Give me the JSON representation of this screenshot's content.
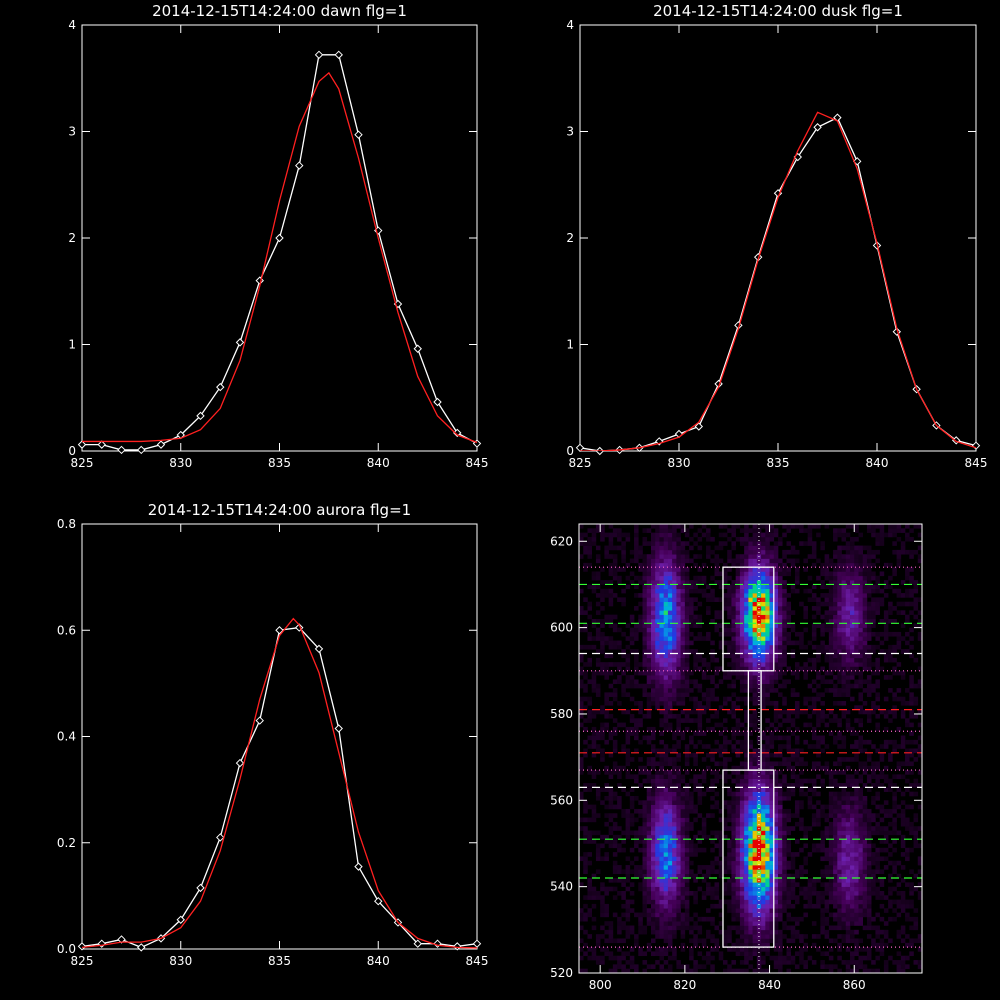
{
  "chart_data": [
    {
      "type": "line",
      "title": "2014-12-15T14:24:00 dawn flg=1",
      "xlim": [
        825,
        845
      ],
      "ylim": [
        0,
        4
      ],
      "xticks": [
        825,
        830,
        835,
        840,
        845
      ],
      "yticks": [
        0,
        1,
        2,
        3,
        4
      ],
      "grid": false,
      "series": [
        {
          "style": "observed",
          "color": "#ffffff",
          "markers": "diamond",
          "x": [
            825,
            826,
            827,
            828,
            829,
            830,
            831,
            832,
            833,
            834,
            835,
            836,
            837,
            838,
            839,
            840,
            841,
            842,
            843,
            844,
            845
          ],
          "y": [
            0.06,
            0.06,
            0.01,
            0.01,
            0.06,
            0.15,
            0.33,
            0.6,
            1.02,
            1.6,
            2.0,
            2.68,
            3.72,
            3.72,
            2.97,
            2.07,
            1.38,
            0.96,
            0.46,
            0.17,
            0.07
          ]
        },
        {
          "style": "fit",
          "color": "#ff2020",
          "markers": "none",
          "x": [
            825,
            826,
            827,
            828,
            829,
            830,
            831,
            832,
            833,
            834,
            835,
            836,
            837,
            837.5,
            838,
            839,
            840,
            841,
            842,
            843,
            844,
            845
          ],
          "y": [
            0.09,
            0.09,
            0.09,
            0.09,
            0.1,
            0.12,
            0.2,
            0.4,
            0.85,
            1.55,
            2.35,
            3.05,
            3.47,
            3.55,
            3.4,
            2.75,
            2.0,
            1.3,
            0.7,
            0.33,
            0.15,
            0.08
          ]
        }
      ]
    },
    {
      "type": "line",
      "title": "2014-12-15T14:24:00 dusk flg=1",
      "xlim": [
        825,
        845
      ],
      "ylim": [
        0,
        4
      ],
      "xticks": [
        825,
        830,
        835,
        840,
        845
      ],
      "yticks": [
        0,
        1,
        2,
        3,
        4
      ],
      "grid": false,
      "series": [
        {
          "style": "observed",
          "color": "#ffffff",
          "markers": "diamond",
          "x": [
            825,
            826,
            827,
            828,
            829,
            830,
            831,
            832,
            833,
            834,
            835,
            836,
            837,
            838,
            839,
            840,
            841,
            842,
            843,
            844,
            845
          ],
          "y": [
            0.03,
            0.0,
            0.01,
            0.03,
            0.09,
            0.16,
            0.23,
            0.63,
            1.18,
            1.82,
            2.42,
            2.76,
            3.04,
            3.13,
            2.72,
            1.93,
            1.12,
            0.58,
            0.24,
            0.1,
            0.05
          ]
        },
        {
          "style": "fit",
          "color": "#ff2020",
          "markers": "none",
          "x": [
            825,
            826,
            827,
            828,
            829,
            830,
            831,
            832,
            833,
            834,
            835,
            836,
            837,
            838,
            839,
            840,
            841,
            842,
            843,
            844,
            845
          ],
          "y": [
            0.0,
            0.0,
            0.01,
            0.03,
            0.07,
            0.13,
            0.27,
            0.6,
            1.15,
            1.8,
            2.38,
            2.82,
            3.18,
            3.1,
            2.65,
            1.95,
            1.15,
            0.58,
            0.24,
            0.09,
            0.03
          ]
        }
      ]
    },
    {
      "type": "line",
      "title": "2014-12-15T14:24:00 aurora flg=1",
      "xlim": [
        825,
        845
      ],
      "ylim": [
        0,
        0.8
      ],
      "xticks": [
        825,
        830,
        835,
        840,
        845
      ],
      "yticks": [
        0.0,
        0.2,
        0.4,
        0.6,
        0.8
      ],
      "grid": false,
      "series": [
        {
          "style": "observed",
          "color": "#ffffff",
          "markers": "diamond",
          "x": [
            825,
            826,
            827,
            828,
            829,
            830,
            831,
            832,
            833,
            834,
            835,
            836,
            837,
            838,
            839,
            840,
            841,
            842,
            843,
            844,
            845
          ],
          "y": [
            0.005,
            0.01,
            0.018,
            0.003,
            0.02,
            0.055,
            0.115,
            0.21,
            0.35,
            0.43,
            0.6,
            0.605,
            0.565,
            0.415,
            0.155,
            0.09,
            0.05,
            0.01,
            0.01,
            0.005,
            0.01
          ]
        },
        {
          "style": "fit",
          "color": "#ff2020",
          "markers": "none",
          "x": [
            825,
            826,
            827,
            828,
            829,
            830,
            831,
            832,
            833,
            834,
            835,
            835.7,
            836,
            837,
            838,
            839,
            840,
            841,
            842,
            843,
            844,
            845
          ],
          "y": [
            0.003,
            0.007,
            0.013,
            0.013,
            0.02,
            0.04,
            0.09,
            0.185,
            0.32,
            0.47,
            0.59,
            0.622,
            0.61,
            0.52,
            0.37,
            0.22,
            0.11,
            0.05,
            0.02,
            0.007,
            0.003,
            0.002
          ]
        }
      ]
    },
    {
      "type": "heatmap",
      "xlim": [
        795,
        876
      ],
      "ylim": [
        520,
        624
      ],
      "xticks": [
        800,
        820,
        840,
        860
      ],
      "yticks": [
        520,
        540,
        560,
        580,
        600,
        620
      ],
      "vertical_marker_x": 837.5,
      "green_dashed_y": [
        610,
        601,
        551,
        542
      ],
      "white_dashed_y": [
        594,
        563
      ],
      "red_dashed_y": [
        581,
        571
      ],
      "pink_dotted_y": [
        614,
        590,
        576,
        567,
        526
      ],
      "selection_box": [
        {
          "x0": 829,
          "x1": 841,
          "y0": 590,
          "y1": 614
        },
        {
          "x0": 835,
          "x1": 838,
          "y0": 567,
          "y1": 590
        },
        {
          "x0": 829,
          "x1": 841,
          "y0": 526,
          "y1": 567
        }
      ],
      "blobs": [
        {
          "x": 837.5,
          "y": 603,
          "sx": 2.6,
          "sy": 7,
          "amp": 1.0
        },
        {
          "x": 837.5,
          "y": 548,
          "sx": 2.6,
          "sy": 9,
          "amp": 1.0
        },
        {
          "x": 815.5,
          "y": 602,
          "sx": 2.4,
          "sy": 9,
          "amp": 0.55
        },
        {
          "x": 815.5,
          "y": 548,
          "sx": 2.4,
          "sy": 8,
          "amp": 0.5
        },
        {
          "x": 859,
          "y": 603,
          "sx": 2.5,
          "sy": 7,
          "amp": 0.25
        },
        {
          "x": 859,
          "y": 546,
          "sx": 2.5,
          "sy": 8,
          "amp": 0.25
        }
      ]
    }
  ]
}
